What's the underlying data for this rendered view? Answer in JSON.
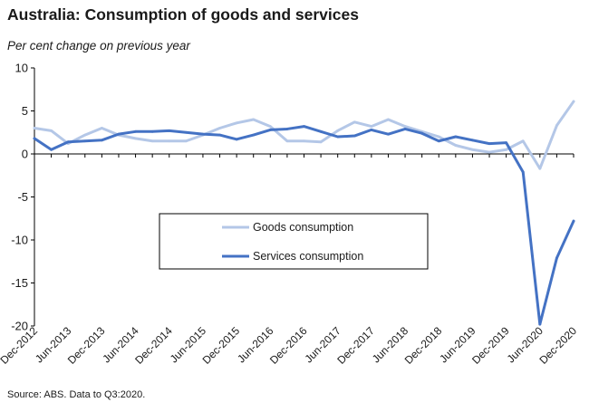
{
  "header": {
    "title": "Australia: Consumption of goods and services",
    "subtitle": "Per cent change on previous year"
  },
  "footer": {
    "source": "Source: ABS.  Data to Q3:2020."
  },
  "chart_data": {
    "type": "line",
    "title": "Australia: Consumption of goods and services",
    "ylabel": "Per cent change on previous year",
    "xlabel": "",
    "ylim": [
      -20,
      10
    ],
    "yticks": [
      10,
      5,
      0,
      -5,
      -10,
      -15,
      -20
    ],
    "x_tick_labels": [
      "Dec-2012",
      "Jun-2013",
      "Dec-2013",
      "Jun-2014",
      "Dec-2014",
      "Jun-2015",
      "Dec-2015",
      "Jun-2016",
      "Dec-2016",
      "Jun-2017",
      "Dec-2017",
      "Jun-2018",
      "Dec-2018",
      "Jun-2019",
      "Dec-2019",
      "Jun-2020",
      "Dec-2020"
    ],
    "x": [
      "Dec-2012",
      "Mar-2013",
      "Jun-2013",
      "Sep-2013",
      "Dec-2013",
      "Mar-2014",
      "Jun-2014",
      "Sep-2014",
      "Dec-2014",
      "Mar-2015",
      "Jun-2015",
      "Sep-2015",
      "Dec-2015",
      "Mar-2016",
      "Jun-2016",
      "Sep-2016",
      "Dec-2016",
      "Mar-2017",
      "Jun-2017",
      "Sep-2017",
      "Dec-2017",
      "Mar-2018",
      "Jun-2018",
      "Sep-2018",
      "Dec-2018",
      "Mar-2019",
      "Jun-2019",
      "Sep-2019",
      "Dec-2019",
      "Mar-2020",
      "Jun-2020",
      "Sep-2020",
      "Dec-2020"
    ],
    "series": [
      {
        "name": "Goods consumption",
        "color": "#b4c7e7",
        "values": [
          3.0,
          2.7,
          1.2,
          2.2,
          3.0,
          2.2,
          1.8,
          1.5,
          1.5,
          1.5,
          2.2,
          3.0,
          3.6,
          4.0,
          3.2,
          1.5,
          1.5,
          1.4,
          2.7,
          3.7,
          3.2,
          4.0,
          3.2,
          2.6,
          2.0,
          1.0,
          0.5,
          0.2,
          0.5,
          1.5,
          -1.7,
          3.3,
          6.1
        ]
      },
      {
        "name": "Services consumption",
        "color": "#4472c4",
        "values": [
          1.8,
          0.5,
          1.4,
          1.5,
          1.6,
          2.3,
          2.6,
          2.6,
          2.7,
          2.5,
          2.3,
          2.2,
          1.7,
          2.2,
          2.8,
          2.9,
          3.2,
          2.6,
          2.0,
          2.1,
          2.8,
          2.3,
          2.9,
          2.4,
          1.5,
          2.0,
          1.6,
          1.2,
          1.3,
          -2.1,
          -19.8,
          -12.1,
          -7.8
        ]
      }
    ],
    "legend": {
      "placement": "center-right",
      "entries": [
        "Goods consumption",
        "Services consumption"
      ]
    },
    "grid": false
  }
}
